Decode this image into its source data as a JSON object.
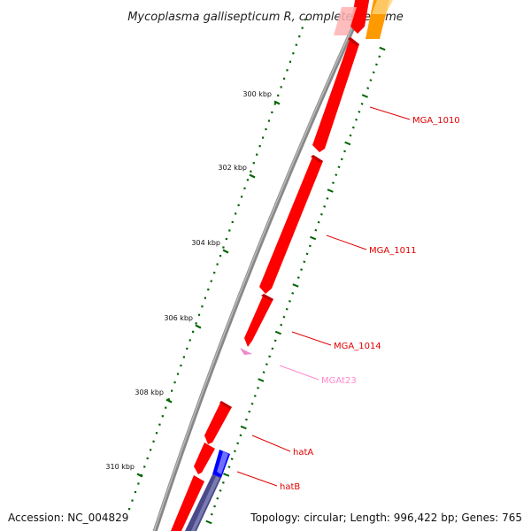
{
  "title": "Mycoplasma gallisepticum R, complete genome",
  "ruler_ticks": [
    {
      "label": "300 kbp"
    },
    {
      "label": "302 kbp"
    },
    {
      "label": "304 kbp"
    },
    {
      "label": "306 kbp"
    },
    {
      "label": "308 kbp"
    },
    {
      "label": "310 kbp"
    }
  ],
  "genes": [
    {
      "label": "MGA_1010",
      "color": "#e00000"
    },
    {
      "label": "MGA_1011",
      "color": "#e00000"
    },
    {
      "label": "MGA_1014",
      "color": "#e00000"
    },
    {
      "label": "MGAt23",
      "color": "#ff88cc"
    },
    {
      "label": "hatA",
      "color": "#e00000"
    },
    {
      "label": "hatB",
      "color": "#e00000"
    }
  ],
  "colors": {
    "cds": "#ff0000",
    "trna": "#ee88cc",
    "blue_feature": "#0000ff",
    "gc_skew": "#4a4a8a",
    "orange_feature": "#ff8c00",
    "backbone": "#888888",
    "ruler_ticks": "#006400"
  },
  "footer": {
    "accession": "Accession: NC_004829",
    "topology": "Topology: circular; Length: 996,422 bp; Genes: 765"
  }
}
